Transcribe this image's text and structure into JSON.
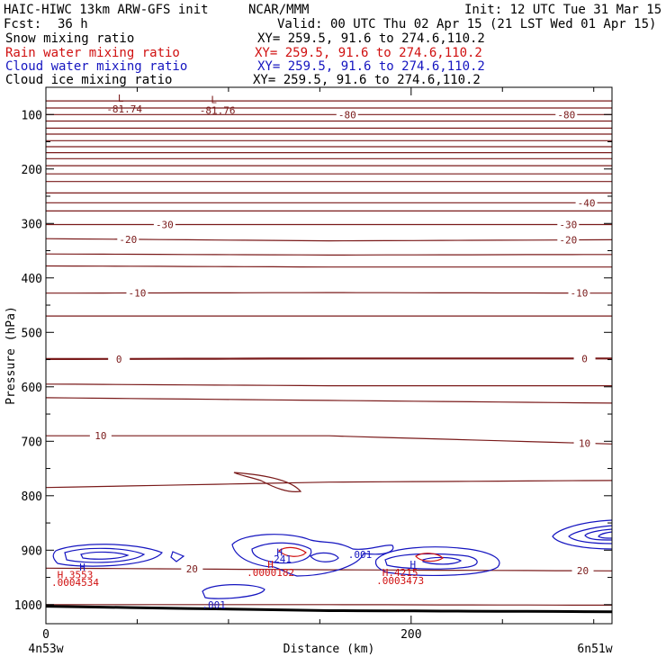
{
  "header": {
    "model": "HAIC-HIWC 13km ARW-GFS init",
    "center": "NCAR/MMM",
    "init": "Init: 12 UTC Tue 31 Mar 15",
    "fcst_label": "Fcst:",
    "fcst_value": "36 h",
    "valid": "Valid: 00 UTC Thu 02 Apr 15 (21 LST Wed 01 Apr 15)"
  },
  "fields": [
    {
      "label": "Snow mixing ratio",
      "xy": "XY= 259.5, 91.6 to 274.6,110.2",
      "color": "#000000"
    },
    {
      "label": "Rain water mixing ratio",
      "xy": "XY= 259.5, 91.6 to 274.6,110.2",
      "color": "#d01010"
    },
    {
      "label": "Cloud water mixing ratio",
      "xy": "XY= 259.5, 91.6 to 274.6,110.2",
      "color": "#1515c0"
    },
    {
      "label": "Cloud ice mixing ratio",
      "xy": "XY= 259.5, 91.6 to 274.6,110.2",
      "color": "#000000"
    }
  ],
  "chart_data": {
    "type": "contour",
    "xlabel": "Distance (km)",
    "ylabel": "Pressure (hPa)",
    "xlim": [
      0,
      310
    ],
    "ylim": [
      1035,
      50
    ],
    "x_ticks": [
      0,
      200
    ],
    "x_minor_ticks": [
      50,
      100,
      150,
      250,
      300
    ],
    "y_ticks": [
      100,
      200,
      300,
      400,
      500,
      600,
      700,
      800,
      900,
      1000
    ],
    "endpoints": {
      "left": "4n53w",
      "right": "6n51w"
    },
    "temperature_color": "#7a1a1a",
    "temperature_contours": [
      {
        "p": [
          75,
          75,
          75
        ],
        "label": ""
      },
      {
        "p": [
          88,
          88,
          88
        ],
        "label": ""
      },
      {
        "p": [
          100,
          100,
          100
        ],
        "label": "-80",
        "label_at": [
          165,
          285
        ]
      },
      {
        "p": [
          112,
          112,
          112
        ],
        "label": ""
      },
      {
        "p": [
          125,
          125,
          125
        ],
        "label": ""
      },
      {
        "p": [
          136,
          136,
          136
        ],
        "label": ""
      },
      {
        "p": [
          148,
          148,
          148
        ],
        "label": ""
      },
      {
        "p": [
          159,
          159,
          159
        ],
        "label": ""
      },
      {
        "p": [
          170,
          170,
          170
        ],
        "label": ""
      },
      {
        "p": [
          181,
          181,
          181
        ],
        "label": ""
      },
      {
        "p": [
          194,
          194,
          194
        ],
        "label": ""
      },
      {
        "p": [
          209,
          209,
          209
        ],
        "label": ""
      },
      {
        "p": [
          223,
          223,
          223
        ],
        "label": ""
      },
      {
        "p": [
          244,
          244,
          244
        ],
        "label": ""
      },
      {
        "p": [
          262,
          262,
          262
        ],
        "label": "-40",
        "label_at": [
          296
        ]
      },
      {
        "p": [
          277,
          277,
          277
        ],
        "label": ""
      },
      {
        "p": [
          302,
          302,
          302
        ],
        "label": "-30",
        "label_at": [
          65,
          286
        ]
      },
      {
        "p": [
          328,
          332,
          330
        ],
        "label": "-20",
        "label_at": [
          45,
          286
        ]
      },
      {
        "p": [
          356,
          358,
          357
        ],
        "label": ""
      },
      {
        "p": [
          378,
          380,
          380
        ],
        "label": ""
      },
      {
        "p": [
          428,
          427,
          428
        ],
        "label": "-10",
        "label_at": [
          50,
          292
        ]
      },
      {
        "p": [
          470,
          470,
          470
        ],
        "label": ""
      },
      {
        "p": [
          549,
          548,
          548
        ],
        "label": "0",
        "label_at": [
          40,
          295
        ]
      },
      {
        "p": [
          595,
          598,
          598
        ],
        "label": ""
      },
      {
        "p": [
          620,
          625,
          630
        ],
        "label": ""
      },
      {
        "p": [
          690,
          690,
          705
        ],
        "label": "10",
        "label_at": [
          30,
          295
        ]
      },
      {
        "p": [
          785,
          775,
          772
        ],
        "label": ""
      },
      {
        "p": [
          933,
          936,
          938
        ],
        "label": "20",
        "label_at": [
          80,
          294
        ]
      },
      {
        "p": [
          1000,
          1000,
          1001
        ],
        "label": ""
      }
    ],
    "surface_p": [
      1003,
      1011,
      1013
    ],
    "extrema": [
      {
        "type": "L",
        "x": 41,
        "p": 70,
        "value": "-81.74"
      },
      {
        "type": "L",
        "x": 92,
        "p": 72,
        "value": "-81.76"
      },
      {
        "type": "H",
        "x": 20,
        "p": 931,
        "value": "H",
        "series": "cloud_water"
      },
      {
        "type": "H",
        "x": 128,
        "p": 904,
        "value": "H",
        "series": "cloud_water"
      },
      {
        "type": "H",
        "x": 201,
        "p": 926,
        "value": "H",
        "series": "cloud_water"
      }
    ],
    "cloud_water_labels": [
      {
        "x": 128,
        "p": 916,
        "value": ".241"
      },
      {
        "x": 172,
        "p": 908,
        "value": ".001"
      },
      {
        "x": 92,
        "p": 1000,
        "value": ".001"
      }
    ],
    "rain_water_labels": [
      {
        "x": 16,
        "p": 945,
        "value": "H.3553"
      },
      {
        "x": 16,
        "p": 959,
        "value": ".0004534"
      },
      {
        "x": 123,
        "p": 926,
        "value": "H"
      },
      {
        "x": 123,
        "p": 941,
        "value": ".0000182"
      },
      {
        "x": 194,
        "p": 941,
        "value": "H.4215"
      },
      {
        "x": 194,
        "p": 956,
        "value": ".0003473"
      }
    ]
  }
}
